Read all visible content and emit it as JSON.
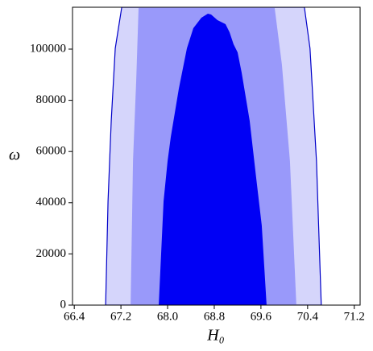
{
  "chart_data": {
    "type": "contour",
    "xlabel": "H₀",
    "ylabel": "ω",
    "xlim": [
      66.37,
      71.3
    ],
    "ylim": [
      0,
      116350
    ],
    "xticks": [
      66.4,
      67.2,
      {
        "value": 68,
        "label": "68.0"
      },
      68.8,
      69.6,
      70.4,
      71.2
    ],
    "yticks": [
      0,
      20000,
      40000,
      60000,
      80000,
      100000
    ],
    "series": [
      {
        "color": "#d5d5fb",
        "edge": "#0000c8",
        "x": [
          66.938,
          66.979,
          67.034,
          67.103,
          67.214,
          70.345,
          70.441,
          70.552,
          70.634
        ],
        "y": [
          0,
          40566,
          72013,
          100314,
          116350,
          116350,
          100314,
          56289,
          0
        ]
      },
      {
        "color": "#9999fa",
        "x": [
          67.366,
          67.407,
          67.462,
          67.503,
          69.834,
          69.959,
          70.097,
          70.207
        ],
        "y": [
          0,
          56289,
          87736,
          116350,
          116350,
          94025,
          56289,
          0
        ]
      },
      {
        "color": "#0000f5",
        "x": [
          67.848,
          67.931,
          68.0,
          68.055,
          68.193,
          68.331,
          68.441,
          68.579,
          68.69,
          68.745,
          68.855,
          68.993,
          69.062,
          69.131,
          69.2,
          69.269,
          69.407,
          69.517,
          69.614,
          69.697
        ],
        "y": [
          0,
          40566,
          56289,
          65723,
          84591,
          100314,
          108176,
          112264,
          113836,
          113522,
          111321,
          109748,
          106604,
          101887,
          98742,
          90881,
          72013,
          50000,
          31132,
          0
        ]
      }
    ]
  }
}
